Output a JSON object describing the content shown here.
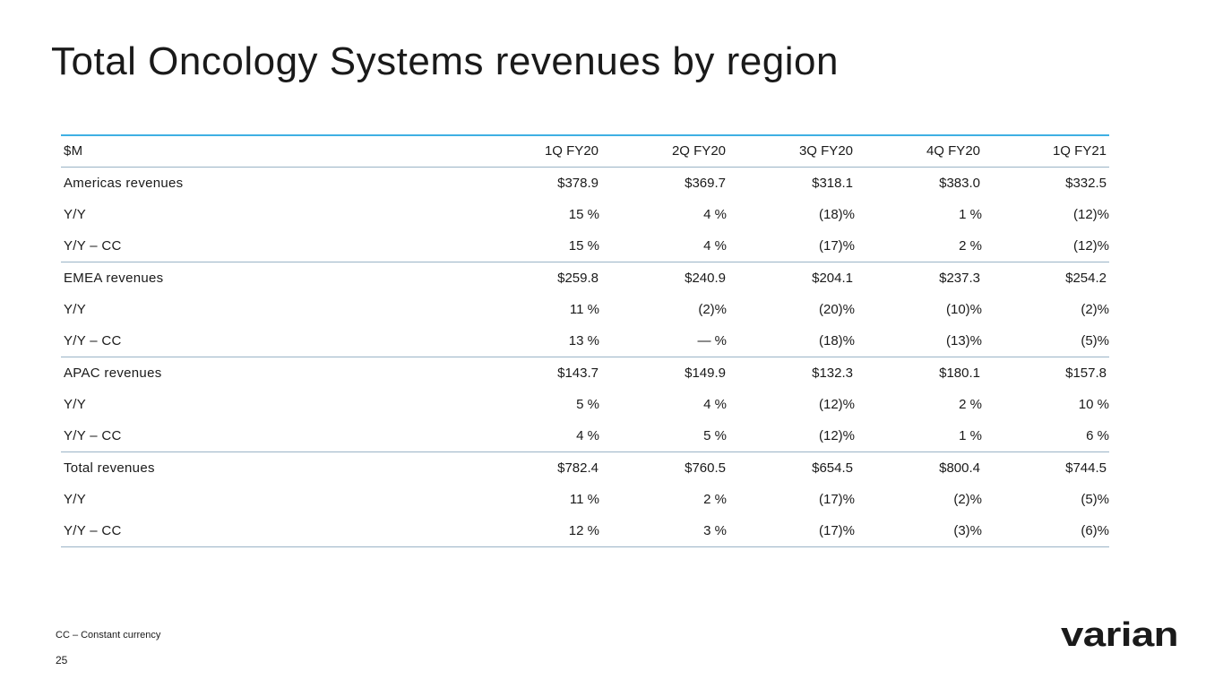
{
  "title": "Total Oncology Systems revenues by region",
  "table": {
    "header": {
      "label": "$M",
      "columns": [
        "1Q FY20",
        "2Q FY20",
        "3Q FY20",
        "4Q FY20",
        "1Q FY21"
      ]
    },
    "rows": [
      {
        "label": "Americas revenues",
        "values": [
          "$378.9",
          "$369.7",
          "$318.1",
          "$383.0",
          "$332.5"
        ]
      },
      {
        "label": "Y/Y",
        "values": [
          "15 %",
          "4 %",
          "(18)%",
          "1 %",
          "(12)%"
        ]
      },
      {
        "label": "Y/Y – CC",
        "values": [
          "15 %",
          "4 %",
          "(17)%",
          "2 %",
          "(12)%"
        ]
      },
      {
        "label": "EMEA revenues",
        "values": [
          "$259.8",
          "$240.9",
          "$204.1",
          "$237.3",
          "$254.2"
        ]
      },
      {
        "label": "Y/Y",
        "values": [
          "11 %",
          "(2)%",
          "(20)%",
          "(10)%",
          "(2)%"
        ]
      },
      {
        "label": "Y/Y – CC",
        "values": [
          "13 %",
          "— %",
          "(18)%",
          "(13)%",
          "(5)%"
        ]
      },
      {
        "label": "APAC revenues",
        "values": [
          "$143.7",
          "$149.9",
          "$132.3",
          "$180.1",
          "$157.8"
        ]
      },
      {
        "label": "Y/Y",
        "values": [
          "5 %",
          "4 %",
          "(12)%",
          "2 %",
          "10 %"
        ]
      },
      {
        "label": "Y/Y – CC",
        "values": [
          "4 %",
          "5 %",
          "(12)%",
          "1 %",
          "6 %"
        ]
      },
      {
        "label": "Total revenues",
        "values": [
          "$782.4",
          "$760.5",
          "$654.5",
          "$800.4",
          "$744.5"
        ]
      },
      {
        "label": "Y/Y",
        "values": [
          "11 %",
          "2 %",
          "(17)%",
          "(2)%",
          "(5)%"
        ]
      },
      {
        "label": "Y/Y – CC",
        "values": [
          "12 %",
          "3 %",
          "(17)%",
          "(3)%",
          "(6)%"
        ]
      }
    ]
  },
  "footnote": "CC – Constant currency",
  "page_number": "25",
  "logo": {
    "text": "varian",
    "color": "#1a1a1a"
  },
  "colors": {
    "accent_rule": "#3fb0e3",
    "divider": "#9ab3c6"
  }
}
